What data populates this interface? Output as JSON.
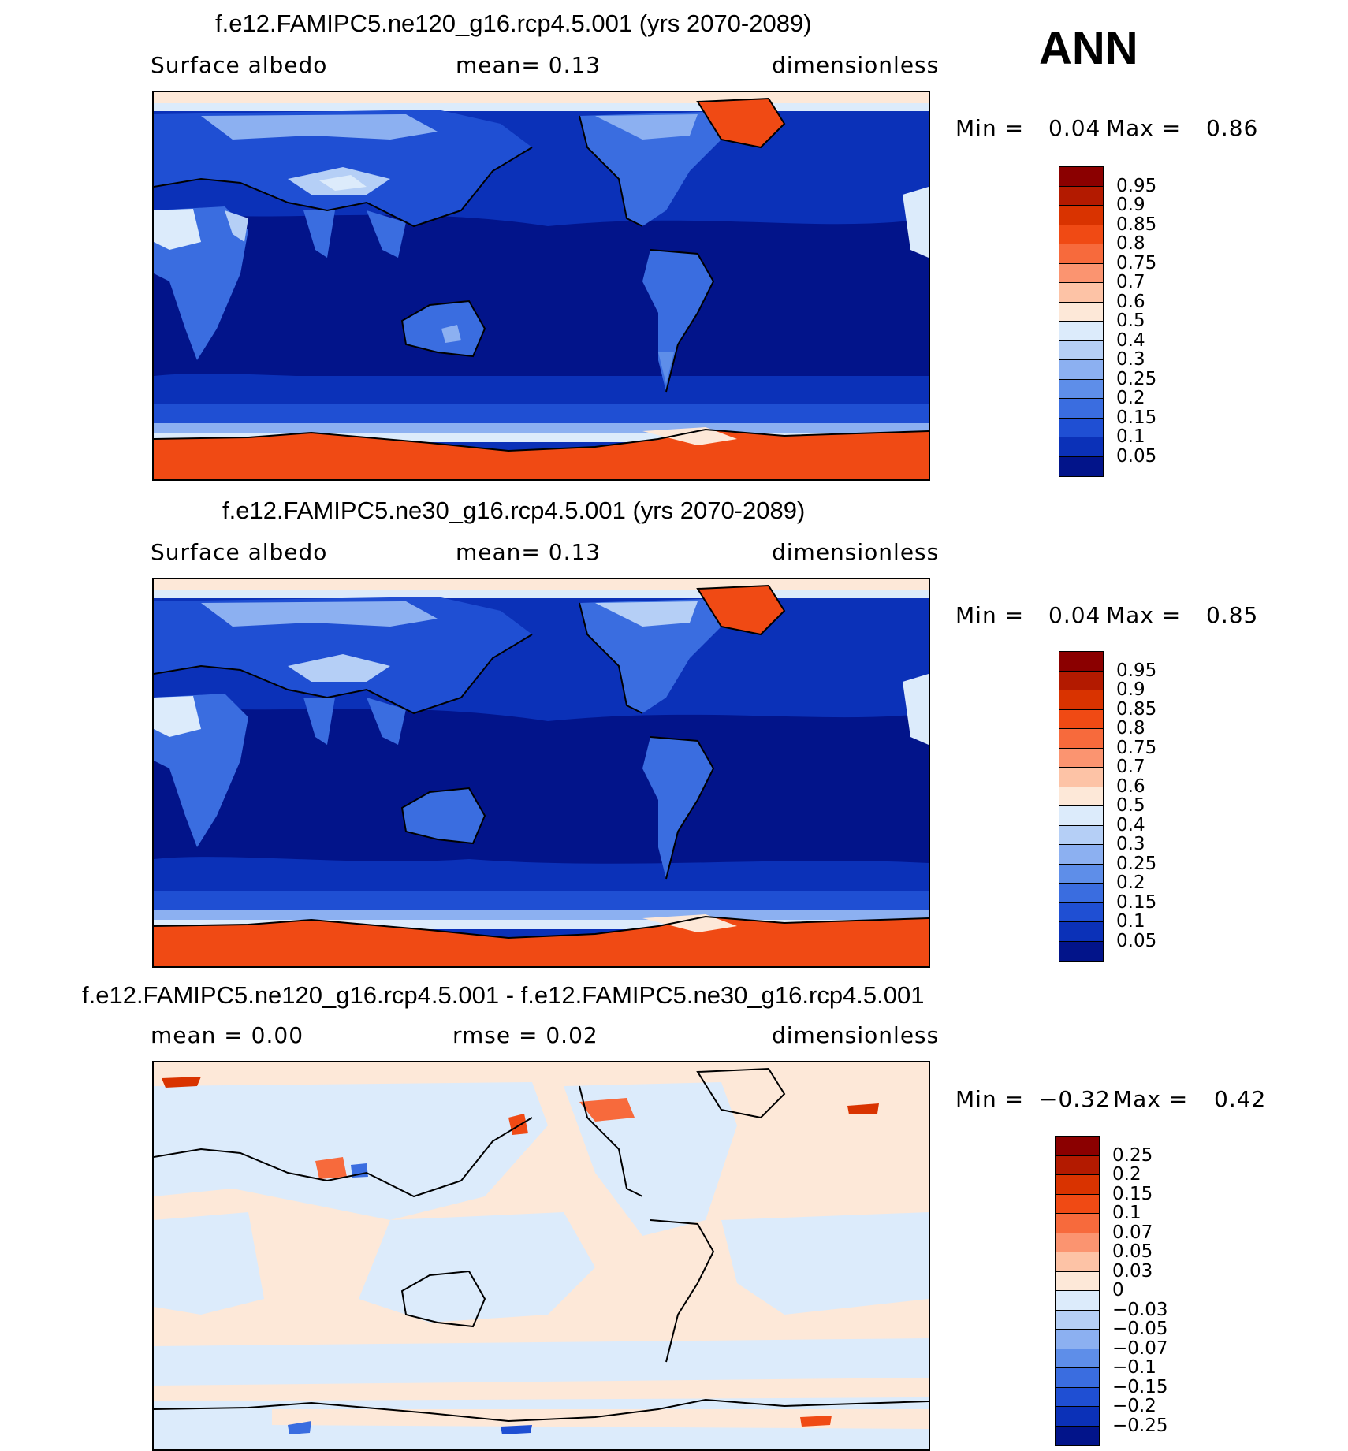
{
  "season": "ANN",
  "panels": [
    {
      "title": "f.e12.FAMIPC5.ne120_g16.rcp4.5.001 (yrs 2070-2089)",
      "left_label": "Surface  albedo",
      "center_label": "mean=    0.13",
      "right_label": "dimensionless",
      "min_label": "Min  =",
      "min_value": "0.04",
      "max_label": "Max  =",
      "max_value": "0.86",
      "colorbar": {
        "labels": [
          "0.95",
          "0.9",
          "0.85",
          "0.8",
          "0.75",
          "0.7",
          "0.6",
          "0.5",
          "0.4",
          "0.3",
          "0.25",
          "0.2",
          "0.15",
          "0.1",
          "0.05"
        ],
        "colors": [
          "#8b0000",
          "#b31a00",
          "#d93300",
          "#f04a14",
          "#f76a3c",
          "#fb9470",
          "#fdc3a6",
          "#fde8d8",
          "#dcebfb",
          "#b5cff6",
          "#8cb0f1",
          "#5e8ee9",
          "#3a6de0",
          "#1f4fd3",
          "#0b31b8",
          "#02148a"
        ]
      },
      "style": "field"
    },
    {
      "title": "f.e12.FAMIPC5.ne30_g16.rcp4.5.001 (yrs 2070-2089)",
      "left_label": "Surface  albedo",
      "center_label": "mean=    0.13",
      "right_label": "dimensionless",
      "min_label": "Min  =",
      "min_value": "0.04",
      "max_label": "Max  =",
      "max_value": "0.85",
      "colorbar": {
        "labels": [
          "0.95",
          "0.9",
          "0.85",
          "0.8",
          "0.75",
          "0.7",
          "0.6",
          "0.5",
          "0.4",
          "0.3",
          "0.25",
          "0.2",
          "0.15",
          "0.1",
          "0.05"
        ],
        "colors": [
          "#8b0000",
          "#b31a00",
          "#d93300",
          "#f04a14",
          "#f76a3c",
          "#fb9470",
          "#fdc3a6",
          "#fde8d8",
          "#dcebfb",
          "#b5cff6",
          "#8cb0f1",
          "#5e8ee9",
          "#3a6de0",
          "#1f4fd3",
          "#0b31b8",
          "#02148a"
        ]
      },
      "style": "field"
    },
    {
      "title": "f.e12.FAMIPC5.ne120_g16.rcp4.5.001 - f.e12.FAMIPC5.ne30_g16.rcp4.5.001",
      "left_label": "mean  =     0.00",
      "center_label": "rmse  =     0.02",
      "right_label": "dimensionless",
      "min_label": "Min  =",
      "min_value": "−0.32",
      "max_label": "Max  =",
      "max_value": "0.42",
      "colorbar": {
        "labels": [
          "0.25",
          "0.2",
          "0.15",
          "0.1",
          "0.07",
          "0.05",
          "0.03",
          "0",
          "−0.03",
          "−0.05",
          "−0.07",
          "−0.1",
          "−0.15",
          "−0.2",
          "−0.25"
        ],
        "colors": [
          "#8b0000",
          "#b31a00",
          "#d93300",
          "#f04a14",
          "#f76a3c",
          "#fb9470",
          "#fdc3a6",
          "#fde8d8",
          "#dcebfb",
          "#b5cff6",
          "#8cb0f1",
          "#5e8ee9",
          "#3a6de0",
          "#1f4fd3",
          "#0b31b8",
          "#02148a"
        ]
      },
      "style": "diff"
    }
  ]
}
